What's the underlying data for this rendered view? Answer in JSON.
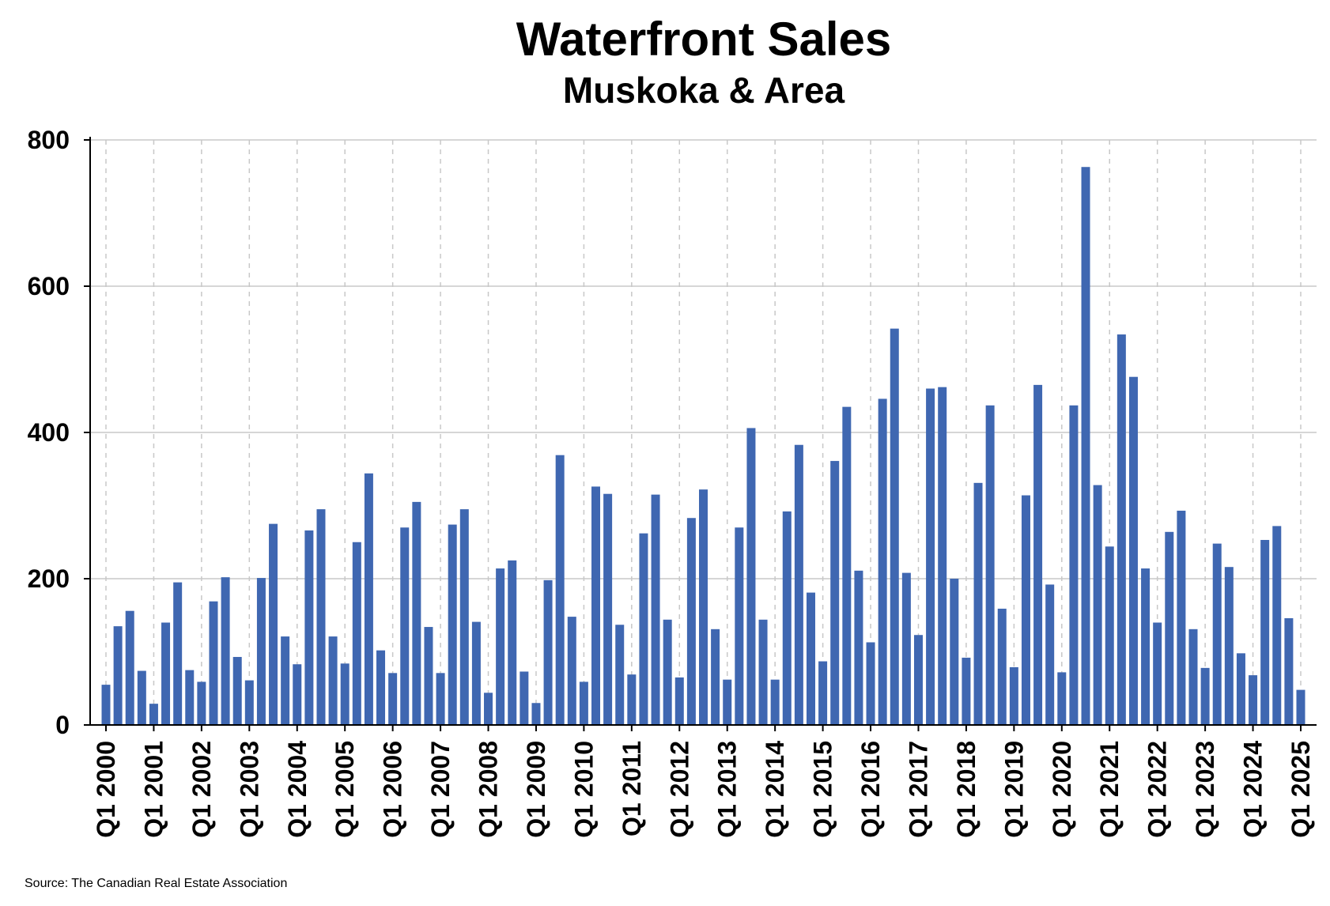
{
  "chart_data": {
    "type": "bar",
    "title": "Waterfront Sales",
    "subtitle": "Muskoka & Area",
    "source": "Source: The Canadian Real Estate Association",
    "xlabel": "",
    "ylabel": "",
    "ylim": [
      0,
      800
    ],
    "yticks": [
      0,
      200,
      400,
      600,
      800
    ],
    "grid": true,
    "color": "#3f67b1",
    "tick_labels": [
      "Q1 2000",
      "Q1 2001",
      "Q1 2002",
      "Q1 2003",
      "Q1 2004",
      "Q1 2005",
      "Q1 2006",
      "Q1 2007",
      "Q1 2008",
      "Q1 2009",
      "Q1 2010",
      "Q1 2011",
      "Q1 2012",
      "Q1 2013",
      "Q1 2014",
      "Q1 2015",
      "Q1 2016",
      "Q1 2017",
      "Q1 2018",
      "Q1 2019",
      "Q1 2020",
      "Q1 2021",
      "Q1 2022",
      "Q1 2023",
      "Q1 2024",
      "Q1 2025"
    ],
    "categories": [
      "Q1 2000",
      "Q2 2000",
      "Q3 2000",
      "Q4 2000",
      "Q1 2001",
      "Q2 2001",
      "Q3 2001",
      "Q4 2001",
      "Q1 2002",
      "Q2 2002",
      "Q3 2002",
      "Q4 2002",
      "Q1 2003",
      "Q2 2003",
      "Q3 2003",
      "Q4 2003",
      "Q1 2004",
      "Q2 2004",
      "Q3 2004",
      "Q4 2004",
      "Q1 2005",
      "Q2 2005",
      "Q3 2005",
      "Q4 2005",
      "Q1 2006",
      "Q2 2006",
      "Q3 2006",
      "Q4 2006",
      "Q1 2007",
      "Q2 2007",
      "Q3 2007",
      "Q4 2007",
      "Q1 2008",
      "Q2 2008",
      "Q3 2008",
      "Q4 2008",
      "Q1 2009",
      "Q2 2009",
      "Q3 2009",
      "Q4 2009",
      "Q1 2010",
      "Q2 2010",
      "Q3 2010",
      "Q4 2010",
      "Q1 2011",
      "Q2 2011",
      "Q3 2011",
      "Q4 2011",
      "Q1 2012",
      "Q2 2012",
      "Q3 2012",
      "Q4 2012",
      "Q1 2013",
      "Q2 2013",
      "Q3 2013",
      "Q4 2013",
      "Q1 2014",
      "Q2 2014",
      "Q3 2014",
      "Q4 2014",
      "Q1 2015",
      "Q2 2015",
      "Q3 2015",
      "Q4 2015",
      "Q1 2016",
      "Q2 2016",
      "Q3 2016",
      "Q4 2016",
      "Q1 2017",
      "Q2 2017",
      "Q3 2017",
      "Q4 2017",
      "Q1 2018",
      "Q2 2018",
      "Q3 2018",
      "Q4 2018",
      "Q1 2019",
      "Q2 2019",
      "Q3 2019",
      "Q4 2019",
      "Q1 2020",
      "Q2 2020",
      "Q3 2020",
      "Q4 2020",
      "Q1 2021",
      "Q2 2021",
      "Q3 2021",
      "Q4 2021",
      "Q1 2022",
      "Q2 2022",
      "Q3 2022",
      "Q4 2022",
      "Q1 2023",
      "Q2 2023",
      "Q3 2023",
      "Q4 2023",
      "Q1 2024",
      "Q2 2024",
      "Q3 2024",
      "Q4 2024",
      "Q1 2025"
    ],
    "values": [
      55,
      135,
      156,
      74,
      29,
      140,
      195,
      75,
      59,
      169,
      202,
      93,
      61,
      201,
      275,
      121,
      83,
      266,
      295,
      121,
      84,
      250,
      344,
      102,
      71,
      270,
      305,
      134,
      71,
      274,
      295,
      141,
      44,
      214,
      225,
      73,
      30,
      198,
      369,
      148,
      59,
      326,
      316,
      137,
      69,
      262,
      315,
      144,
      65,
      283,
      322,
      131,
      62,
      270,
      406,
      144,
      62,
      292,
      383,
      181,
      87,
      361,
      435,
      211,
      113,
      446,
      542,
      208,
      123,
      460,
      462,
      200,
      92,
      331,
      437,
      159,
      79,
      314,
      465,
      192,
      72,
      437,
      763,
      328,
      244,
      534,
      476,
      214,
      140,
      264,
      293,
      131,
      78,
      248,
      216,
      98,
      68,
      253,
      272,
      146,
      48
    ]
  }
}
